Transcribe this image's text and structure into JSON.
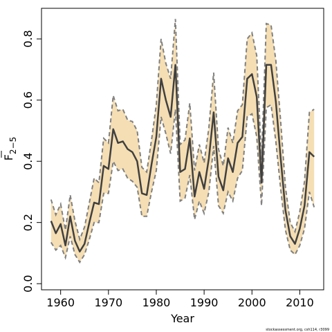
{
  "chart_data": {
    "type": "line",
    "xlabel": "Year",
    "ylabel": "F",
    "ylabel_subscript": "2−5",
    "xlim": [
      1956,
      2015
    ],
    "ylim": [
      -0.02,
      0.9
    ],
    "x_ticks": [
      1960,
      1970,
      1980,
      1990,
      2000,
      2010
    ],
    "x_tick_labels": [
      "1960",
      "1970",
      "1980",
      "1990",
      "2000",
      "2010"
    ],
    "y_ticks": [
      0.0,
      0.2,
      0.4,
      0.6,
      0.8
    ],
    "y_tick_labels": [
      "0.0",
      "0.2",
      "0.4",
      "0.6",
      "0.8"
    ],
    "grid": false,
    "legend": "none",
    "footer": "stockassessment.org, csh114, r3099",
    "colors": {
      "band": "#f5deb3",
      "band_edge": "#808080",
      "line": "#404040"
    },
    "series": [
      {
        "x": [
          1958,
          1959,
          1960,
          1961,
          1962,
          1963,
          1964,
          1965,
          1966,
          1967,
          1968,
          1969,
          1970,
          1971,
          1972,
          1973,
          1974,
          1975,
          1976,
          1977,
          1978,
          1979,
          1980,
          1981,
          1982,
          1983,
          1984,
          1985,
          1986,
          1987,
          1988,
          1989,
          1990,
          1991,
          1992,
          1993,
          1994,
          1995,
          1996,
          1997,
          1998,
          1999,
          2000,
          2001,
          2002,
          2003,
          2004,
          2005,
          2006,
          2007,
          2008,
          2009,
          2010,
          2011,
          2012,
          2013
        ],
        "values": [
          0.205,
          0.165,
          0.195,
          0.125,
          0.22,
          0.14,
          0.105,
          0.13,
          0.2,
          0.265,
          0.26,
          0.385,
          0.375,
          0.505,
          0.46,
          0.465,
          0.44,
          0.43,
          0.4,
          0.295,
          0.29,
          0.39,
          0.48,
          0.67,
          0.6,
          0.545,
          0.715,
          0.365,
          0.375,
          0.475,
          0.285,
          0.365,
          0.31,
          0.41,
          0.56,
          0.35,
          0.305,
          0.41,
          0.365,
          0.46,
          0.48,
          0.67,
          0.685,
          0.61,
          0.33,
          0.715,
          0.715,
          0.595,
          0.41,
          0.24,
          0.155,
          0.13,
          0.18,
          0.255,
          0.43,
          0.415
        ],
        "lower": [
          0.135,
          0.11,
          0.125,
          0.085,
          0.155,
          0.095,
          0.07,
          0.095,
          0.145,
          0.2,
          0.2,
          0.295,
          0.295,
          0.4,
          0.37,
          0.375,
          0.345,
          0.335,
          0.315,
          0.22,
          0.22,
          0.3,
          0.37,
          0.545,
          0.49,
          0.425,
          0.57,
          0.27,
          0.28,
          0.355,
          0.21,
          0.27,
          0.23,
          0.3,
          0.45,
          0.255,
          0.23,
          0.3,
          0.27,
          0.345,
          0.37,
          0.545,
          0.555,
          0.48,
          0.255,
          0.575,
          0.585,
          0.465,
          0.31,
          0.175,
          0.11,
          0.095,
          0.125,
          0.18,
          0.3,
          0.25
        ],
        "upper": [
          0.275,
          0.225,
          0.26,
          0.175,
          0.29,
          0.205,
          0.145,
          0.185,
          0.265,
          0.345,
          0.33,
          0.475,
          0.46,
          0.615,
          0.565,
          0.57,
          0.535,
          0.53,
          0.5,
          0.38,
          0.365,
          0.47,
          0.585,
          0.8,
          0.72,
          0.67,
          0.865,
          0.455,
          0.47,
          0.59,
          0.37,
          0.455,
          0.395,
          0.51,
          0.69,
          0.44,
          0.385,
          0.51,
          0.46,
          0.565,
          0.585,
          0.8,
          0.82,
          0.745,
          0.405,
          0.85,
          0.845,
          0.73,
          0.53,
          0.315,
          0.2,
          0.17,
          0.235,
          0.335,
          0.56,
          0.57
        ]
      }
    ]
  }
}
